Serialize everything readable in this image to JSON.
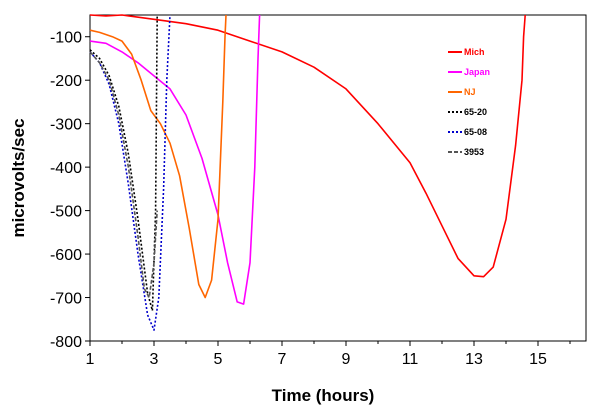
{
  "chart_data": {
    "type": "line",
    "title": "",
    "xlabel": "Time (hours)",
    "ylabel": "microvolts/sec",
    "xlim": [
      1,
      16.5
    ],
    "ylim": [
      -800,
      -50
    ],
    "xticks": [
      1,
      3,
      5,
      7,
      9,
      11,
      13,
      15
    ],
    "yticks": [
      -100,
      -200,
      -300,
      -400,
      -500,
      -600,
      -700,
      -800
    ],
    "grid": false,
    "legend_position": "top-right",
    "series": [
      {
        "name": "Mich",
        "color": "#ff0000",
        "dash": "solid",
        "x": [
          1.0,
          1.5,
          2.0,
          3.0,
          4.0,
          5.0,
          6.0,
          7.0,
          8.0,
          9.0,
          10.0,
          11.0,
          11.5,
          12.0,
          12.5,
          13.0,
          13.3,
          13.6,
          14.0,
          14.3,
          14.5,
          14.55,
          14.6
        ],
        "y": [
          -50,
          -52,
          -50,
          -60,
          -70,
          -85,
          -110,
          -135,
          -170,
          -220,
          -300,
          -390,
          -460,
          -535,
          -610,
          -650,
          -652,
          -630,
          -520,
          -350,
          -200,
          -100,
          -50
        ]
      },
      {
        "name": "Japan",
        "color": "#ff00ff",
        "dash": "solid",
        "x": [
          1.0,
          1.5,
          2.0,
          2.5,
          3.0,
          3.5,
          4.0,
          4.5,
          5.0,
          5.3,
          5.6,
          5.8,
          6.0,
          6.15,
          6.25,
          6.3
        ],
        "y": [
          -110,
          -115,
          -135,
          -160,
          -190,
          -220,
          -280,
          -380,
          -510,
          -620,
          -710,
          -715,
          -620,
          -400,
          -150,
          -50
        ]
      },
      {
        "name": "NJ",
        "color": "#ff6600",
        "dash": "solid",
        "x": [
          1.0,
          1.3,
          1.7,
          2.0,
          2.3,
          2.6,
          2.9,
          3.2,
          3.5,
          3.8,
          4.1,
          4.4,
          4.6,
          4.8,
          5.0,
          5.15,
          5.22,
          5.25
        ],
        "y": [
          -85,
          -90,
          -100,
          -110,
          -140,
          -200,
          -270,
          -300,
          -345,
          -420,
          -540,
          -670,
          -700,
          -660,
          -520,
          -250,
          -100,
          -50
        ]
      },
      {
        "name": "65-20",
        "color": "#000000",
        "dash": "dotted",
        "x": [
          1.0,
          1.3,
          1.6,
          1.9,
          2.2,
          2.5,
          2.8,
          2.95,
          3.05,
          3.1
        ],
        "y": [
          -130,
          -150,
          -190,
          -260,
          -370,
          -520,
          -690,
          -730,
          -500,
          -50
        ]
      },
      {
        "name": "65-08",
        "color": "#0000cc",
        "dash": "dotted",
        "x": [
          1.0,
          1.3,
          1.6,
          1.9,
          2.2,
          2.5,
          2.8,
          3.0,
          3.15,
          3.3,
          3.4,
          3.5
        ],
        "y": [
          -135,
          -160,
          -210,
          -300,
          -440,
          -600,
          -740,
          -775,
          -700,
          -450,
          -200,
          -50
        ]
      },
      {
        "name": "3953",
        "color": "#555555",
        "dash": "dashed",
        "x": [
          1.0,
          1.3,
          1.6,
          1.9,
          2.2,
          2.5,
          2.7,
          2.85,
          3.0,
          3.1
        ],
        "y": [
          -135,
          -160,
          -200,
          -280,
          -400,
          -560,
          -680,
          -700,
          -620,
          -500
        ]
      }
    ]
  }
}
